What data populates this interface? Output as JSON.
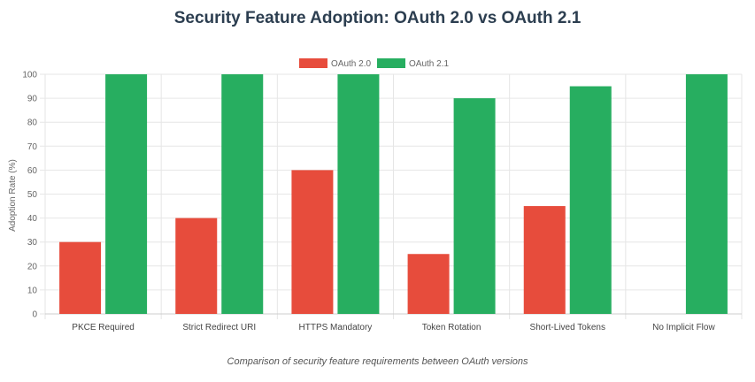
{
  "title": "Security Feature Adoption: OAuth 2.0 vs OAuth 2.1",
  "caption": "Comparison of security feature requirements between OAuth versions",
  "colors": {
    "oauth20": "#e74c3c",
    "oauth21": "#27ae60",
    "grid": "#e6e6e6",
    "axis_text": "#666666"
  },
  "chart_data": {
    "type": "bar",
    "categories": [
      "PKCE Required",
      "Strict Redirect URI",
      "HTTPS Mandatory",
      "Token Rotation",
      "Short-Lived Tokens",
      "No Implicit Flow"
    ],
    "series": [
      {
        "name": "OAuth 2.0",
        "values": [
          30,
          40,
          60,
          25,
          45,
          0
        ]
      },
      {
        "name": "OAuth 2.1",
        "values": [
          100,
          100,
          100,
          90,
          95,
          100
        ]
      }
    ],
    "ylabel": "Adoption Rate (%)",
    "xlabel": "",
    "ylim": [
      0,
      100
    ],
    "yticks": [
      0,
      10,
      20,
      30,
      40,
      50,
      60,
      70,
      80,
      90,
      100
    ],
    "grid": true,
    "legend": "top-center"
  }
}
